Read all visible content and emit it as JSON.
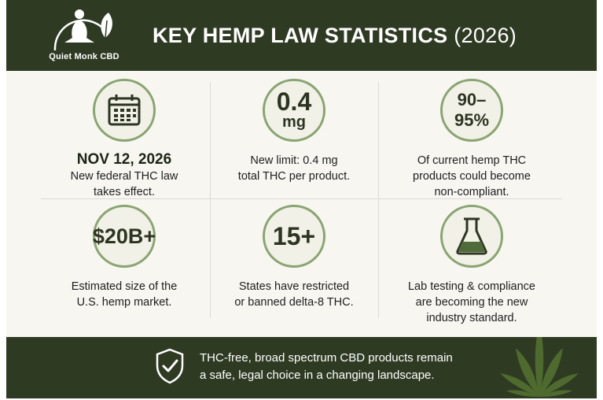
{
  "header": {
    "brand": "Quiet Monk CBD",
    "title_main": "KEY HEMP LAW STATISTICS",
    "title_year": "(2026)"
  },
  "stats": [
    {
      "icon": "calendar-icon",
      "headline": "NOV 12, 2026",
      "lines": [
        "New federal THC law",
        "takes effect."
      ]
    },
    {
      "value": "0.4",
      "unit": "mg",
      "lines": [
        "New limit: 0.4 mg",
        "total THC per product."
      ]
    },
    {
      "value": "90–95%",
      "lines": [
        "Of current hemp THC",
        "products could become",
        "non-compliant."
      ]
    },
    {
      "value": "$20B+",
      "lines": [
        "Estimated size of the",
        "U.S. hemp market."
      ]
    },
    {
      "value": "15+",
      "lines": [
        "States have restricted",
        "or banned delta-8 THC."
      ]
    },
    {
      "icon": "flask-icon",
      "lines": [
        "Lab testing & compliance",
        "are becoming the new",
        "industry standard."
      ]
    }
  ],
  "footer": {
    "lines": [
      "THC-free, broad spectrum CBD products remain",
      "a safe, legal choice in a changing landscape."
    ]
  },
  "colors": {
    "dark_green": "#2f3a23",
    "accent_green": "#8aa472",
    "panel_bg": "#f7f6f1"
  }
}
